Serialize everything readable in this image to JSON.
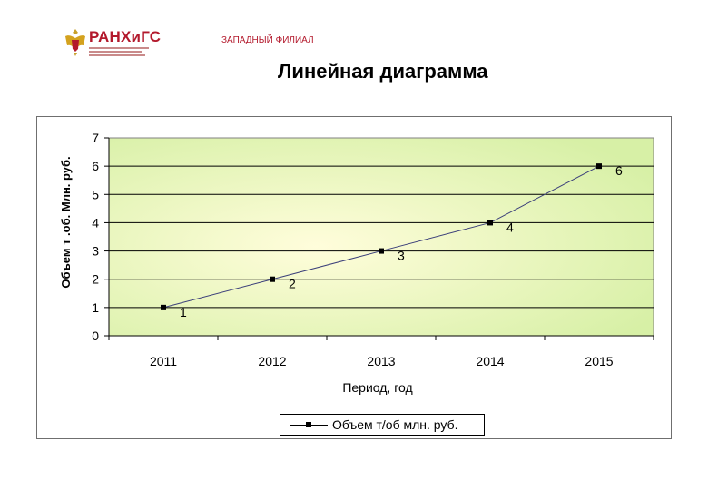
{
  "header": {
    "logo_text": "РАНХиГС",
    "branch_text": "ЗАПАДНЫЙ ФИЛИАЛ",
    "title": "Линейная диаграмма"
  },
  "colors": {
    "plot_center": "#fffddb",
    "plot_edge": "#d7f0a6",
    "line": "#3b3f7a",
    "brand": "#b3192c"
  },
  "chart_data": {
    "type": "line",
    "title": "Линейная диаграмма",
    "xlabel": "Период, год",
    "ylabel": "Объем т .об. Млн. руб.",
    "categories": [
      "2011",
      "2012",
      "2013",
      "2014",
      "2015"
    ],
    "series": [
      {
        "name": "Объем т/об млн. руб.",
        "values": [
          1,
          2,
          3,
          4,
          6
        ],
        "data_labels": [
          "1",
          "2",
          "3",
          "4",
          "6"
        ]
      }
    ],
    "ylim": [
      0,
      7
    ],
    "yticks": [
      "0",
      "1",
      "2",
      "3",
      "4",
      "5",
      "6",
      "7"
    ],
    "grid": true,
    "legend": "bottom"
  }
}
